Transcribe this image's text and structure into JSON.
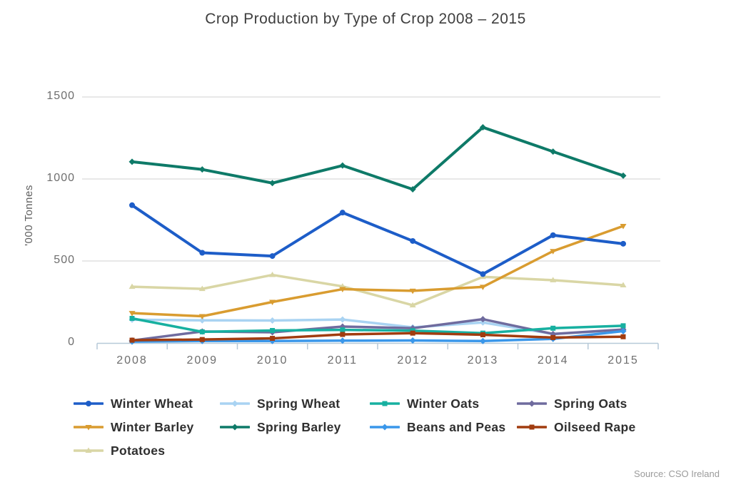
{
  "title": "Crop Production by Type of Crop 2008 – 2015",
  "source": "Source: CSO Ireland",
  "y_axis": {
    "title": "'000 Tonnes",
    "ticks": [
      0,
      500,
      1000,
      1500
    ],
    "tick_labels": [
      "0",
      "500",
      "1000",
      "1500"
    ],
    "range": [
      0,
      1500
    ]
  },
  "x_axis": {
    "categories": [
      "2008",
      "2009",
      "2010",
      "2011",
      "2012",
      "2013",
      "2014",
      "2015"
    ]
  },
  "palette": {
    "background": "#ffffff",
    "grid_line": "#d9d9d9",
    "axis_line": "#b6c9d8",
    "tick_text": "#6e6e6e",
    "title_text": "#3e3e3e",
    "legend_text": "#2f2f2f",
    "source_text": "#9b9b9b"
  },
  "chart_data": {
    "type": "line",
    "x": [
      2008,
      2009,
      2010,
      2011,
      2012,
      2013,
      2014,
      2015
    ],
    "title": "Crop Production by Type of Crop 2008 – 2015",
    "xlabel": "",
    "ylabel": "'000 Tonnes",
    "ylim": [
      0,
      1500
    ],
    "grid": true,
    "legend_position": "bottom",
    "series": [
      {
        "name": "Winter Wheat",
        "color": "#1d5dc8",
        "marker": "circle",
        "values": [
          840,
          550,
          530,
          795,
          622,
          420,
          657,
          605
        ]
      },
      {
        "name": "Spring Wheat",
        "color": "#a9d3f2",
        "marker": "diamond",
        "values": [
          142,
          138,
          137,
          143,
          95,
          125,
          55,
          78
        ]
      },
      {
        "name": "Winter Oats",
        "color": "#17b0a0",
        "marker": "square",
        "values": [
          150,
          68,
          76,
          80,
          75,
          60,
          90,
          105
        ]
      },
      {
        "name": "Spring Oats",
        "color": "#6f6b9e",
        "marker": "diamond",
        "values": [
          15,
          70,
          65,
          100,
          90,
          145,
          55,
          82
        ]
      },
      {
        "name": "Winter Barley",
        "color": "#d99c30",
        "marker": "triangle-down",
        "values": [
          182,
          163,
          250,
          328,
          318,
          342,
          560,
          713
        ]
      },
      {
        "name": "Spring Barley",
        "color": "#0e7a68",
        "marker": "diamond",
        "values": [
          1105,
          1058,
          975,
          1082,
          937,
          1315,
          1167,
          1020
        ]
      },
      {
        "name": "Beans and Peas",
        "color": "#3a97ea",
        "marker": "diamond",
        "values": [
          8,
          12,
          12,
          14,
          15,
          12,
          25,
          72
        ]
      },
      {
        "name": "Oilseed Rape",
        "color": "#a13c0f",
        "marker": "square",
        "values": [
          17,
          21,
          28,
          52,
          60,
          50,
          33,
          38
        ]
      },
      {
        "name": "Potatoes",
        "color": "#d9d6a5",
        "marker": "triangle-up",
        "values": [
          343,
          330,
          415,
          345,
          230,
          403,
          383,
          352
        ]
      }
    ],
    "draw_order": [
      "Potatoes",
      "Spring Wheat",
      "Spring Oats",
      "Winter Oats",
      "Beans and Peas",
      "Oilseed Rape",
      "Winter Barley",
      "Winter Wheat",
      "Spring Barley"
    ]
  }
}
